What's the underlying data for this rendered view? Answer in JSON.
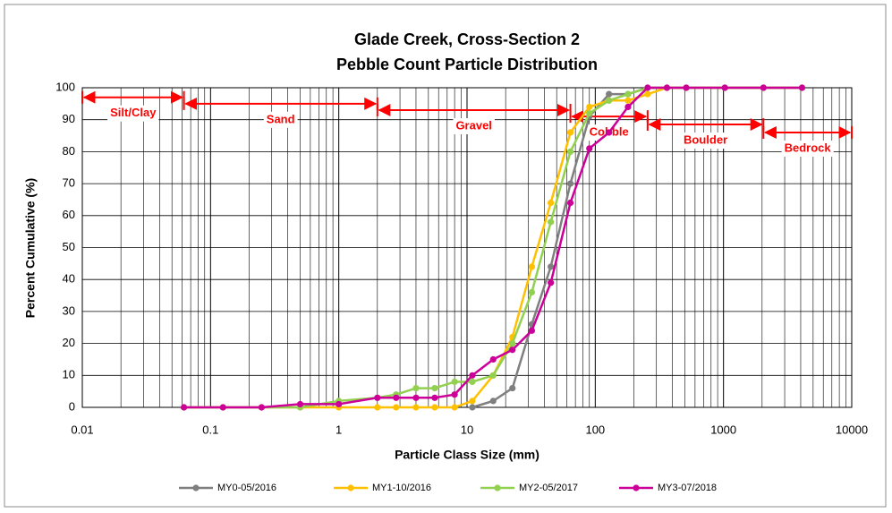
{
  "chart_data": {
    "type": "line",
    "title": [
      "Glade Creek, Cross-Section 2",
      "Pebble Count Particle Distribution"
    ],
    "x_label": "Particle Class Size (mm)",
    "y_label": "Percent Cumulative (%)",
    "x_log": true,
    "minor_grid": true,
    "grid": true,
    "xlim": [
      0.01,
      10000
    ],
    "xticks": [
      0.01,
      0.1,
      1,
      10,
      100,
      1000,
      10000
    ],
    "ylim": [
      0,
      100
    ],
    "yticks": [
      0,
      10,
      20,
      30,
      40,
      50,
      60,
      70,
      80,
      90,
      100
    ],
    "legend": "bottom",
    "x": [
      0.062,
      0.125,
      0.25,
      0.5,
      1,
      2,
      2.8,
      4,
      5.6,
      8,
      11,
      16,
      22.6,
      32,
      45,
      64,
      90,
      128,
      180,
      256,
      362,
      512,
      1024,
      2048,
      4096
    ],
    "series": [
      {
        "name": "MY0-05/2016",
        "color": "#7f7f7f",
        "values": [
          null,
          null,
          null,
          null,
          null,
          null,
          null,
          null,
          null,
          null,
          0,
          2,
          6,
          26,
          44,
          70,
          91,
          98,
          98,
          100,
          100,
          100,
          100,
          100,
          100
        ]
      },
      {
        "name": "MY1-10/2016",
        "color": "#ffc000",
        "values": [
          0,
          0,
          0,
          0,
          0,
          0,
          0,
          0,
          0,
          0,
          2,
          10,
          22,
          44,
          64,
          86,
          94,
          96,
          96,
          98,
          100,
          100,
          100,
          100,
          100
        ]
      },
      {
        "name": "MY2-05/2017",
        "color": "#92d050",
        "values": [
          0,
          0,
          0,
          0,
          2,
          3,
          4,
          6,
          6,
          8,
          8,
          10,
          20,
          36,
          58,
          80,
          92,
          96,
          98,
          100,
          100,
          100,
          100,
          100,
          100
        ]
      },
      {
        "name": "MY3-07/2018",
        "color": "#cc0099",
        "values": [
          0,
          0,
          0,
          1,
          1,
          3,
          3,
          3,
          3,
          4,
          10,
          15,
          18,
          24,
          39,
          64,
          81,
          86,
          94,
          100,
          100,
          100,
          100,
          100,
          100
        ]
      }
    ],
    "annotations": [
      {
        "label": "Silt/Clay",
        "x": [
          0.01,
          0.062
        ],
        "y": 97
      },
      {
        "label": "Sand",
        "x": [
          0.062,
          2
        ],
        "y": 95
      },
      {
        "label": "Gravel",
        "x": [
          2,
          64
        ],
        "y": 93
      },
      {
        "label": "Cobble",
        "x": [
          64,
          256
        ],
        "y": 91
      },
      {
        "label": "Boulder",
        "x": [
          256,
          2048
        ],
        "y": 88.5
      },
      {
        "label": "Bedrock",
        "x": [
          2048,
          10000
        ],
        "y": 86
      }
    ],
    "annotation_color": "#ff0000"
  }
}
